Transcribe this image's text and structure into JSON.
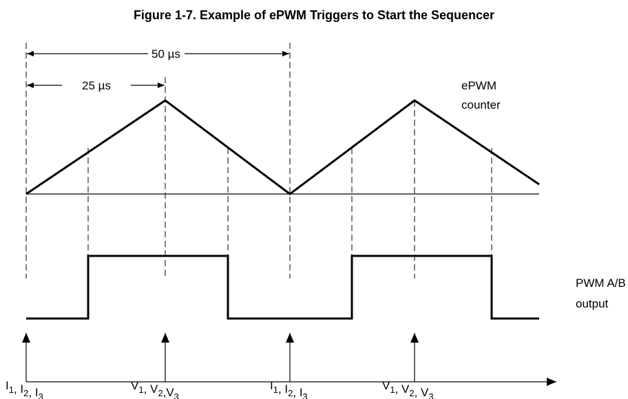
{
  "title": "Figure 1-7.  Example of ePWM Triggers to Start the Sequencer",
  "dimensions": [
    "50 µs",
    "25 µs"
  ],
  "counter_label": [
    "ePWM",
    "counter"
  ],
  "output_label": [
    "PWM A/B",
    "output"
  ],
  "trigger_labels": [
    [
      [
        "I",
        "1"
      ],
      [
        ", I",
        "2"
      ],
      [
        ", I",
        "3"
      ]
    ],
    [
      [
        "V",
        "1"
      ],
      [
        ", V",
        "2"
      ],
      [
        ",V",
        "3"
      ]
    ],
    [
      [
        "I",
        "1"
      ],
      [
        ", I",
        "2"
      ],
      [
        ", I",
        "3"
      ]
    ],
    [
      [
        "V",
        "1"
      ],
      [
        ", V",
        "2"
      ],
      [
        ", V",
        "3"
      ]
    ]
  ]
}
